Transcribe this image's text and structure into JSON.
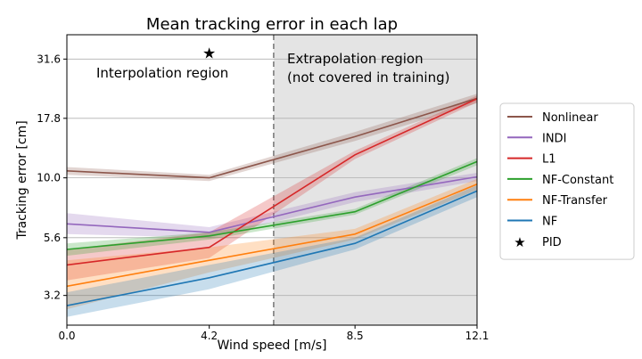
{
  "chart_data": {
    "type": "line",
    "title": "Mean tracking error in each lap",
    "xlabel": "Wind speed [m/s]",
    "ylabel": "Tracking error [cm]",
    "yscale": "log",
    "xlim": [
      0,
      12.1
    ],
    "ylim": [
      2.4,
      40
    ],
    "x": [
      0,
      4.2,
      8.5,
      12.1
    ],
    "xticks": [
      0,
      4.2,
      8.5,
      12.1
    ],
    "xtick_labels": [
      "0.0",
      "4.2",
      "8.5",
      "12.1"
    ],
    "yticks": [
      3.2,
      5.6,
      10.0,
      17.8,
      31.6
    ],
    "ytick_labels": [
      "3.2",
      "5.6",
      "10.0",
      "17.8",
      "31.6"
    ],
    "grid": "y",
    "divider_x": 6.1,
    "regions": [
      {
        "label": "Interpolation region",
        "shaded": false
      },
      {
        "label": "Extrapolation region\n(not covered in training)",
        "shaded": true
      }
    ],
    "legend_position": "outside-right",
    "series": [
      {
        "name": "Nonlinear",
        "color": "#8c564b",
        "values": [
          10.7,
          10.0,
          14.9,
          21.6
        ],
        "lower": [
          10.3,
          9.7,
          14.3,
          20.6
        ],
        "upper": [
          11.1,
          10.3,
          15.6,
          22.6
        ]
      },
      {
        "name": "INDI",
        "color": "#9467bd",
        "values": [
          6.4,
          5.9,
          8.3,
          10.1
        ],
        "lower": [
          5.8,
          5.6,
          7.9,
          9.7
        ],
        "upper": [
          7.1,
          6.2,
          8.7,
          10.5
        ]
      },
      {
        "name": "L1",
        "color": "#d62728",
        "values": [
          4.3,
          5.1,
          12.5,
          21.5
        ],
        "lower": [
          3.7,
          4.6,
          12.0,
          20.8
        ],
        "upper": [
          5.0,
          5.9,
          13.0,
          22.2
        ]
      },
      {
        "name": "NF-Constant",
        "color": "#2ca02c",
        "values": [
          5.0,
          5.7,
          7.2,
          11.7
        ],
        "lower": [
          4.7,
          5.5,
          7.0,
          11.3
        ],
        "upper": [
          5.3,
          5.9,
          7.4,
          12.1
        ]
      },
      {
        "name": "NF-Transfer",
        "color": "#ff7f0e",
        "values": [
          3.5,
          4.5,
          5.8,
          9.4
        ],
        "lower": [
          2.8,
          4.0,
          5.5,
          8.9
        ],
        "upper": [
          4.5,
          5.1,
          6.1,
          9.9
        ]
      },
      {
        "name": "NF",
        "color": "#1f77b4",
        "values": [
          2.9,
          3.8,
          5.3,
          8.8
        ],
        "lower": [
          2.6,
          3.4,
          5.0,
          8.3
        ],
        "upper": [
          3.3,
          4.3,
          5.6,
          9.3
        ]
      }
    ],
    "markers": [
      {
        "name": "PID",
        "symbol": "★",
        "x": 4.2,
        "y": 33.5,
        "color": "#000000"
      }
    ]
  }
}
